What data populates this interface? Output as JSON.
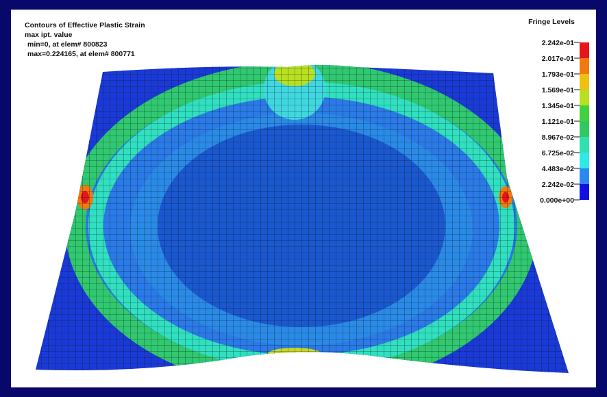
{
  "header": {
    "title": "Contours of Effective Plastic Strain",
    "lines": [
      "max ipt. value",
      "min=0, at elem# 800823",
      "max=0.224165, at elem# 800771"
    ]
  },
  "legend": {
    "title": "Fringe Levels",
    "levels": [
      "2.242e-01",
      "2.017e-01",
      "1.793e-01",
      "1.569e-01",
      "1.345e-01",
      "1.121e-01",
      "8.967e-02",
      "6.725e-02",
      "4.483e-02",
      "2.242e-02",
      "0.000e+00"
    ],
    "colors": [
      "#e8141a",
      "#f07a10",
      "#f0c010",
      "#b8e020",
      "#40d040",
      "#30c860",
      "#30e0b0",
      "#30e8e8",
      "#2a88f0",
      "#1010e0"
    ]
  }
}
